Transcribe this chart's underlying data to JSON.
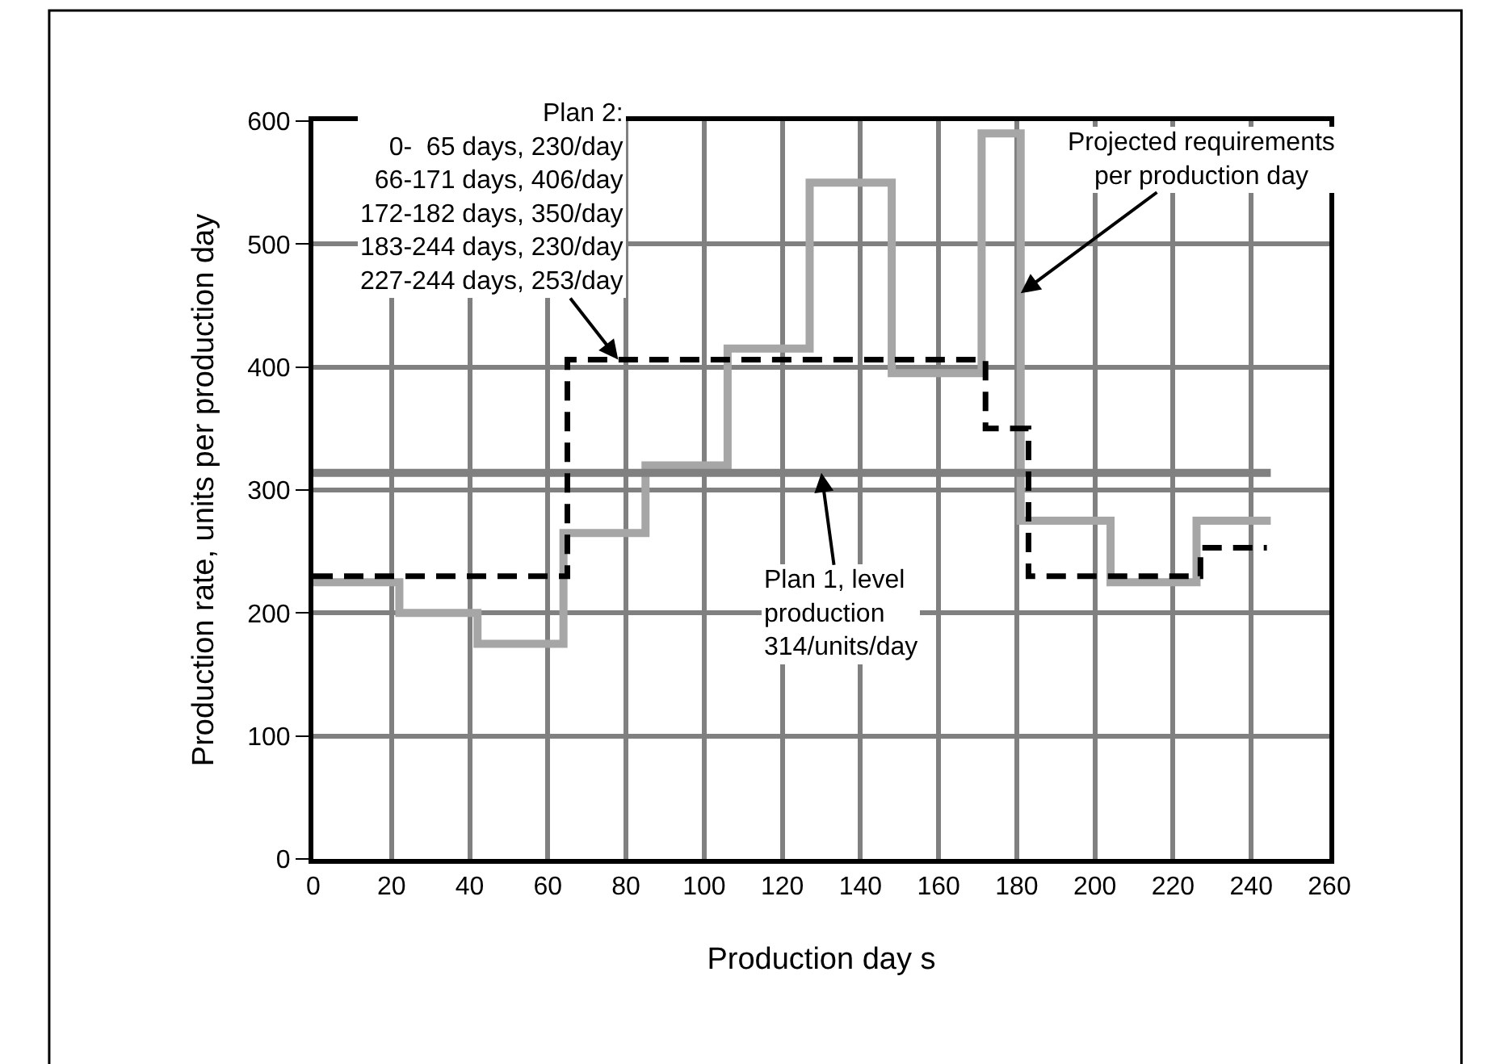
{
  "chart_data": {
    "type": "step",
    "xlabel": "Production day s",
    "ylabel": "Production rate, units per production day",
    "series": [
      {
        "color": "#a6a6a6",
        "line_style": "solid",
        "x": [
          0,
          22,
          42,
          64,
          85,
          106,
          127,
          148,
          171,
          181,
          204,
          226,
          245
        ],
        "values": [
          225,
          200,
          175,
          265,
          320,
          415,
          550,
          395,
          590,
          275,
          225,
          275,
          275
        ]
      },
      {
        "type": "line",
        "color": "#808080",
        "line_style": "solid",
        "x": [
          0,
          245
        ],
        "values": [
          314,
          314
        ]
      },
      {
        "color": "#000000",
        "line_style": "dashed",
        "x": [
          0,
          65,
          172,
          183,
          227,
          244
        ],
        "values": [
          230,
          406,
          350,
          230,
          253,
          253
        ]
      }
    ],
    "xlim": [
      0,
      260
    ],
    "xticks": [
      0,
      20,
      40,
      60,
      80,
      100,
      120,
      140,
      160,
      180,
      200,
      220,
      240,
      260
    ],
    "ylim": [
      0,
      600
    ],
    "yticks": [
      0,
      100,
      200,
      300,
      400,
      500,
      600
    ],
    "grid": true,
    "legend": false,
    "annotations": [
      {
        "text": "Plan 2:\n0-  65 days, 230/day\n66-171 days, 406/day\n172-182 days, 350/day\n183-244 days, 230/day\n227-244 days, 253/day",
        "x": 78,
        "y": 406
      },
      {
        "text": "Projected requirements\nper production day",
        "x": 181,
        "y": 460
      },
      {
        "text": "Plan 1, level\nproduction\n314/units/day",
        "x": 130,
        "y": 314
      }
    ]
  }
}
